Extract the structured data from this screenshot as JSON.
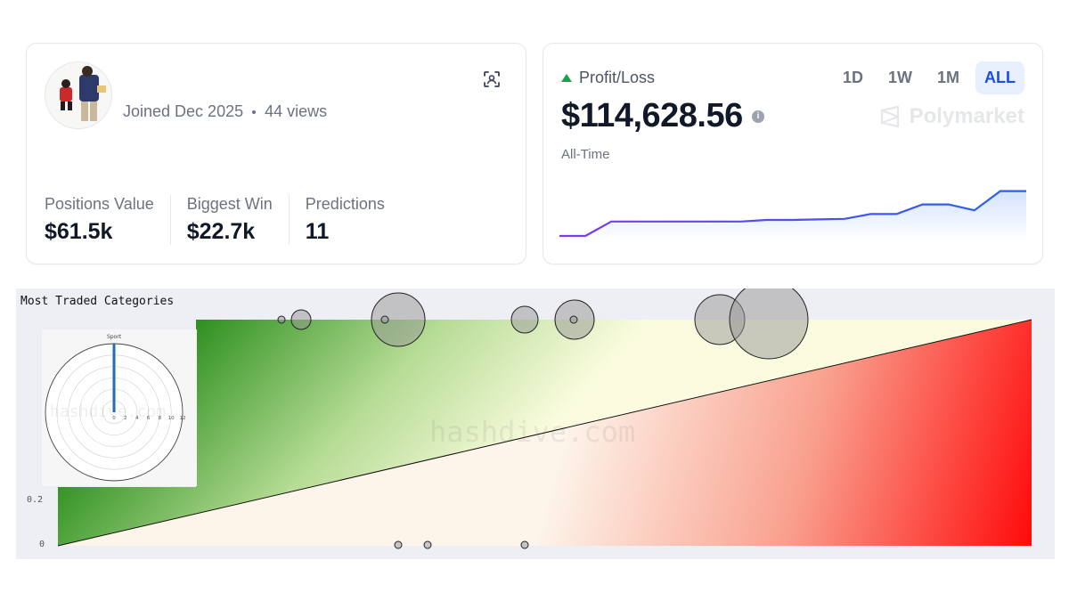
{
  "profile": {
    "joined": "Joined Dec 2025",
    "views": "44 views",
    "stats": [
      {
        "label": "Positions Value",
        "value": "$61.5k"
      },
      {
        "label": "Biggest Win",
        "value": "$22.7k"
      },
      {
        "label": "Predictions",
        "value": "11"
      }
    ]
  },
  "pnl": {
    "label": "Profit/Loss",
    "value": "$114,628.56",
    "period": "All-Time",
    "brand": "Polymarket",
    "tabs": [
      "1D",
      "1W",
      "1M",
      "ALL"
    ],
    "active_tab": "ALL",
    "trend_color": "#16a34a",
    "line_color_start": "#7c3aed",
    "line_color_end": "#2563eb",
    "series": [
      0,
      0,
      0.27,
      0.27,
      0.27,
      0.27,
      0.27,
      0.27,
      0.3,
      0.3,
      0.31,
      0.32,
      0.41,
      0.41,
      0.59,
      0.59,
      0.48,
      0.84,
      0.84
    ]
  },
  "categories": {
    "title": "Most Traded Categories",
    "watermark": "hashdive.com",
    "y_ticks": [
      "0.2",
      "0"
    ],
    "polar": {
      "axis_label": "Sport",
      "tick_labels": [
        "0",
        "2",
        "4",
        "6",
        "8",
        "10",
        "12"
      ],
      "value": 12,
      "max": 12,
      "bar_color": "#1f6fb2"
    }
  }
}
